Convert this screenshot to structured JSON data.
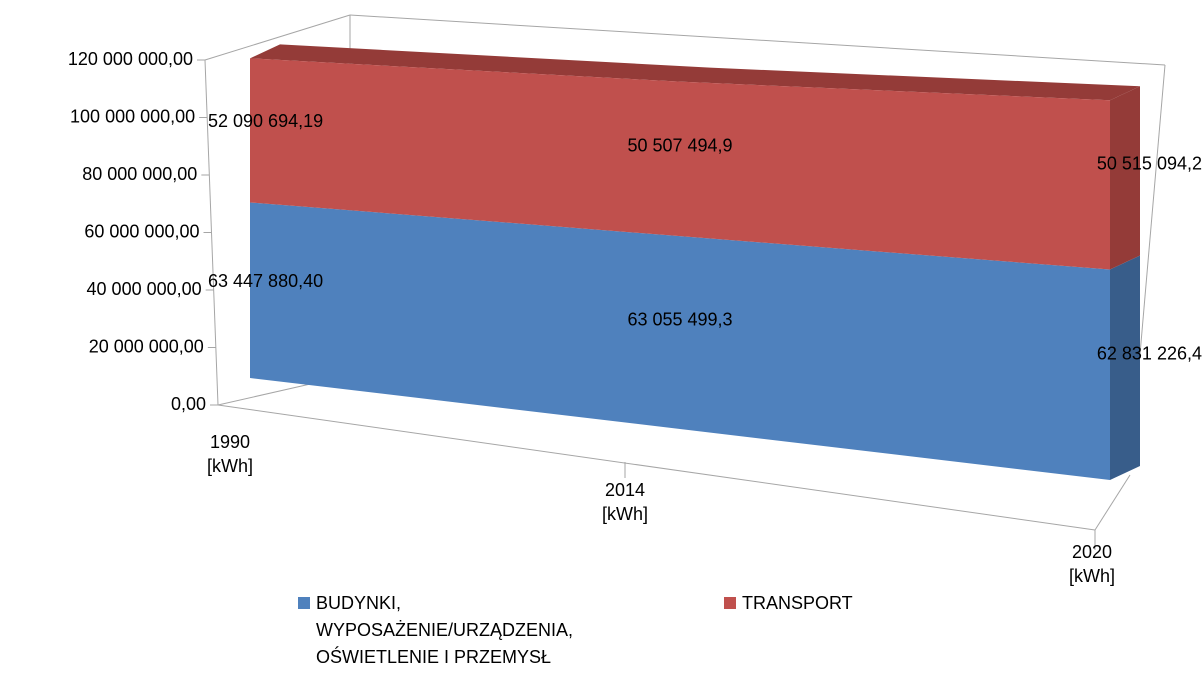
{
  "chart_data": {
    "type": "area",
    "stacked": true,
    "categories": [
      "1990 [kWh]",
      "2014 [kWh]",
      "2020 [kWh]"
    ],
    "series": [
      {
        "name": "BUDYNKI, WYPOSAŻENIE/URZĄDZENIA, OŚWIETLENIE I PRZEMYSŁ",
        "color": "#4f81bd",
        "side_color": "#385d8a",
        "values": [
          63447880.4,
          63055499.3,
          62831226.4
        ],
        "value_labels": [
          "63 447 880,40",
          "63 055 499,3",
          "62 831 226,4"
        ]
      },
      {
        "name": "TRANSPORT",
        "color": "#c0504d",
        "side_color": "#943b38",
        "values": [
          52090694.19,
          50507494.9,
          50515094.2
        ],
        "value_labels": [
          "52 090 694,19",
          "50 507 494,9",
          "50 515 094,2"
        ]
      }
    ],
    "ylim": [
      0,
      120000000
    ],
    "yticks": [
      {
        "value": 0,
        "label": "0,00"
      },
      {
        "value": 20000000,
        "label": "20 000 000,00"
      },
      {
        "value": 40000000,
        "label": "40 000 000,00"
      },
      {
        "value": 60000000,
        "label": "60 000 000,00"
      },
      {
        "value": 80000000,
        "label": "80 000 000,00"
      },
      {
        "value": 100000000,
        "label": "100 000 000,00"
      },
      {
        "value": 120000000,
        "label": "120 000 000,00"
      }
    ],
    "legend": "bottom"
  }
}
